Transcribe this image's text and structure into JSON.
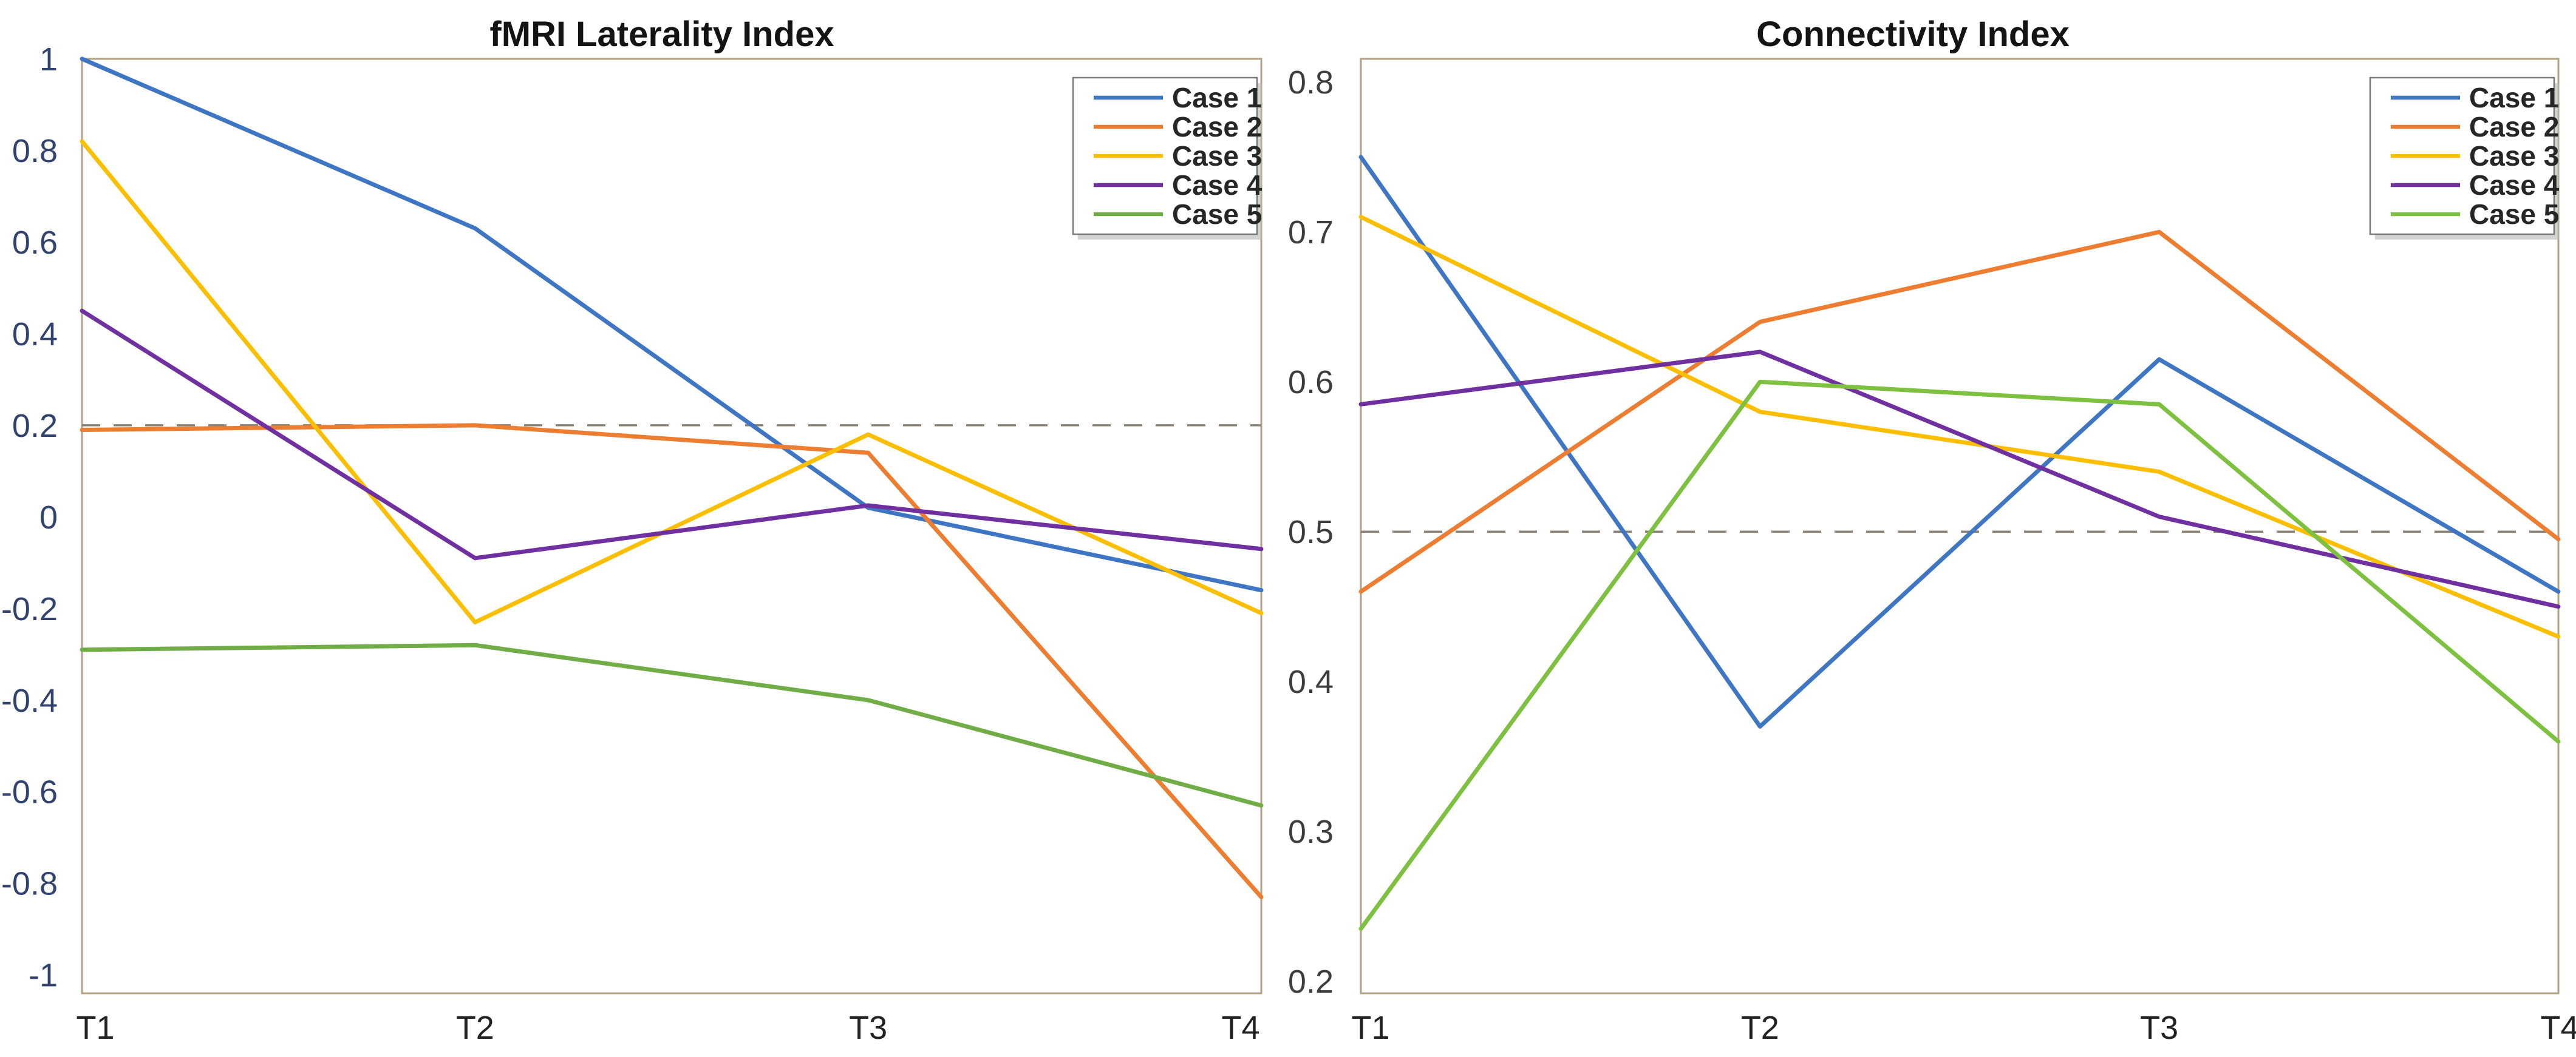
{
  "figure": {
    "background": "#ffffff",
    "frame_color": "#b2a185",
    "reference_line_color": "#8b8274",
    "legend_border_color": "#7a7a7a",
    "legend_text_color": "#262626",
    "title_color": "#141414"
  },
  "chart_data": [
    {
      "type": "line",
      "title": "fMRI Laterality Index",
      "categories": [
        "T1",
        "T2",
        "T3",
        "T4"
      ],
      "series": [
        {
          "name": "Case 1",
          "color": "#3f76c3",
          "values": [
            1.0,
            0.63,
            0.02,
            -0.16
          ]
        },
        {
          "name": "Case 2",
          "color": "#ed7d31",
          "values": [
            0.19,
            0.2,
            0.14,
            -0.83
          ]
        },
        {
          "name": "Case 3",
          "color": "#fcbf00",
          "values": [
            0.82,
            -0.23,
            0.18,
            -0.21
          ]
        },
        {
          "name": "Case 4",
          "color": "#7030a0",
          "values": [
            0.45,
            -0.09,
            0.025,
            -0.07
          ]
        },
        {
          "name": "Case 5",
          "color": "#70ad47",
          "values": [
            -0.29,
            -0.28,
            -0.4,
            -0.63
          ]
        }
      ],
      "reference_line": 0.2,
      "ylim": [
        -1,
        1
      ],
      "y_ticks": [
        {
          "v": 1,
          "label": "1"
        },
        {
          "v": 0.8,
          "label": "0.8"
        },
        {
          "v": 0.6,
          "label": "0.6"
        },
        {
          "v": 0.4,
          "label": "0.4"
        },
        {
          "v": 0.2,
          "label": "0.2"
        },
        {
          "v": 0,
          "label": "0"
        },
        {
          "v": -0.2,
          "label": "-0.2"
        },
        {
          "v": -0.4,
          "label": "-0.4"
        },
        {
          "v": -0.6,
          "label": "-0.6"
        },
        {
          "v": -0.8,
          "label": "-0.8"
        },
        {
          "v": -1,
          "label": "-1"
        }
      ],
      "tick_color": "#31426e",
      "xlabel_color": "#222222",
      "grid": false,
      "legend_position": "top-right"
    },
    {
      "type": "line",
      "title": "Connectivity Index",
      "categories": [
        "T1",
        "T2",
        "T3",
        "T4"
      ],
      "series": [
        {
          "name": "Case 1",
          "color": "#3f76c3",
          "values": [
            0.75,
            0.37,
            0.615,
            0.46
          ]
        },
        {
          "name": "Case 2",
          "color": "#ed7d31",
          "values": [
            0.46,
            0.64,
            0.7,
            0.495
          ]
        },
        {
          "name": "Case 3",
          "color": "#fcbf00",
          "values": [
            0.71,
            0.58,
            0.54,
            0.43
          ]
        },
        {
          "name": "Case 4",
          "color": "#7030a0",
          "values": [
            0.585,
            0.62,
            0.51,
            0.45
          ]
        },
        {
          "name": "Case 5",
          "color": "#7ec141",
          "values": [
            0.235,
            0.6,
            0.585,
            0.36
          ]
        }
      ],
      "reference_line": 0.5,
      "ylim": [
        0.2,
        0.8
      ],
      "y_ticks": [
        {
          "v": 0.8,
          "label": "0.8"
        },
        {
          "v": 0.7,
          "label": "0.7"
        },
        {
          "v": 0.6,
          "label": "0.6"
        },
        {
          "v": 0.5,
          "label": "0.5"
        },
        {
          "v": 0.4,
          "label": "0.4"
        },
        {
          "v": 0.3,
          "label": "0.3"
        },
        {
          "v": 0.2,
          "label": "0.2"
        }
      ],
      "tick_color": "#3d3d3d",
      "xlabel_color": "#222222",
      "grid": false,
      "legend_position": "top-right"
    }
  ]
}
